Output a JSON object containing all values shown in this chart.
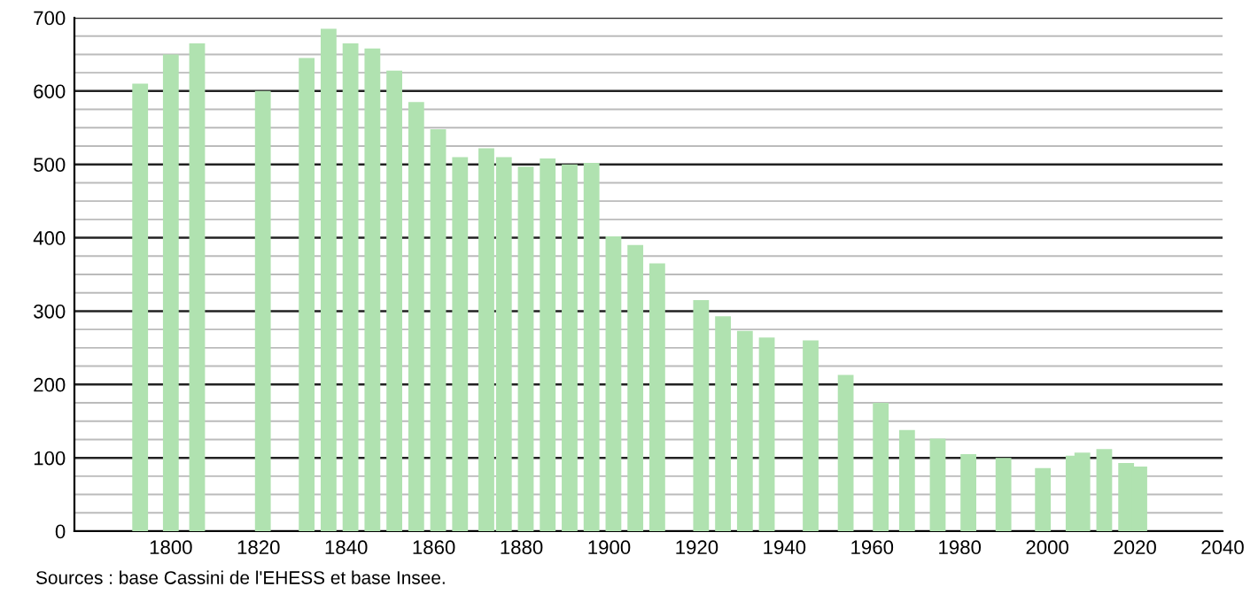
{
  "chart_data": {
    "type": "bar",
    "x": [
      1793,
      1800,
      1806,
      1821,
      1831,
      1836,
      1841,
      1846,
      1851,
      1856,
      1861,
      1866,
      1872,
      1876,
      1881,
      1886,
      1891,
      1896,
      1901,
      1906,
      1911,
      1921,
      1926,
      1931,
      1936,
      1946,
      1954,
      1962,
      1968,
      1975,
      1982,
      1990,
      1999,
      2006,
      2008,
      2013,
      2018,
      2021
    ],
    "values": [
      610,
      650,
      665,
      600,
      645,
      685,
      665,
      658,
      628,
      585,
      548,
      510,
      522,
      510,
      497,
      508,
      500,
      502,
      402,
      390,
      365,
      315,
      293,
      273,
      264,
      260,
      213,
      175,
      138,
      126,
      105,
      100,
      86,
      103,
      107,
      112,
      93,
      88
    ],
    "color": "#b0e2b0",
    "xlim": [
      1778,
      2040
    ],
    "xticks": [
      1800,
      1820,
      1840,
      1860,
      1880,
      1900,
      1920,
      1940,
      1960,
      1980,
      2000,
      2020,
      2040
    ],
    "ylim": [
      0,
      700
    ],
    "yticks": [
      0,
      100,
      200,
      300,
      400,
      500,
      600,
      700
    ],
    "grid": "y",
    "annotations": [
      "Sources : base Cassini de l'EHESS et base Insee."
    ]
  }
}
